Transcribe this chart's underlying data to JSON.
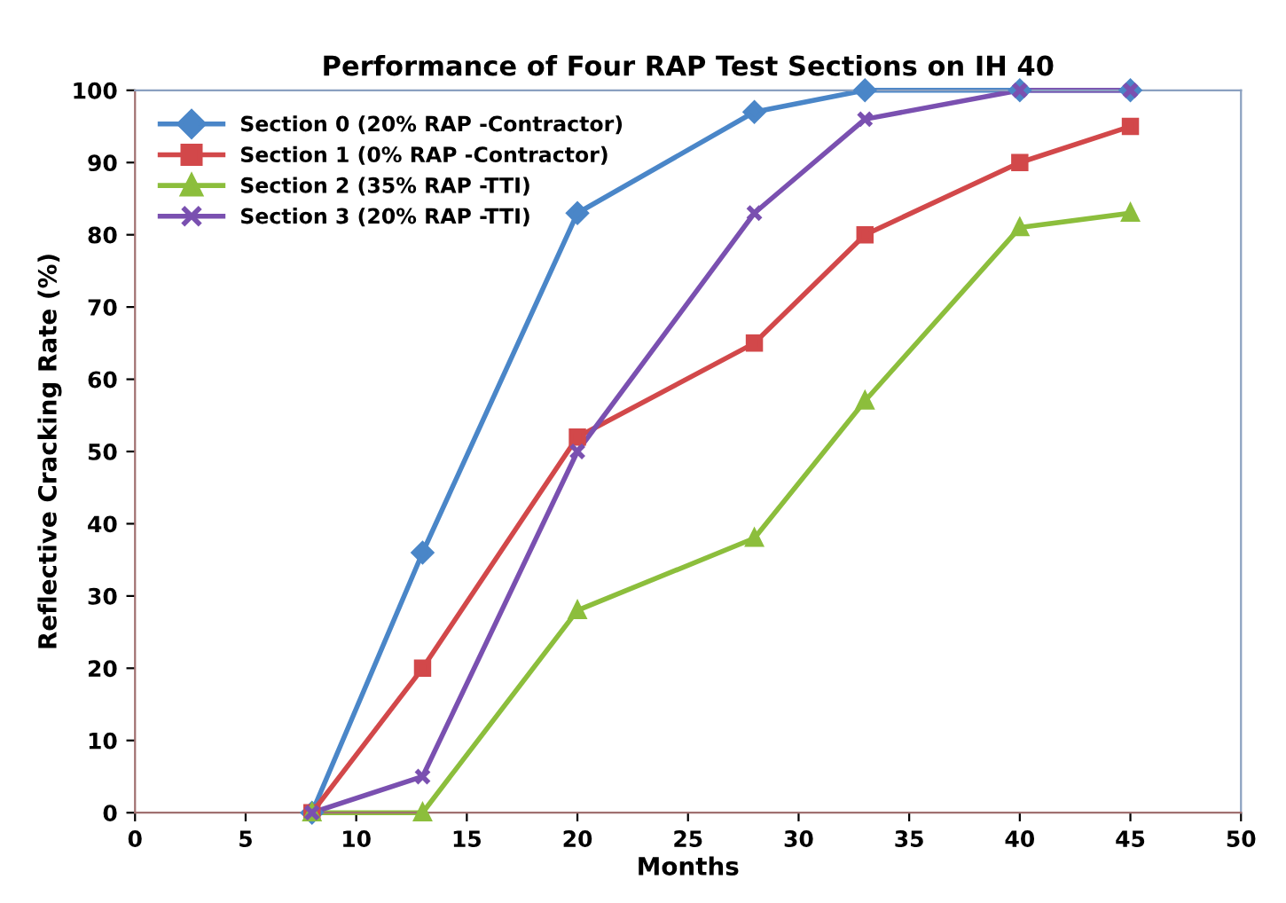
{
  "chart_data": {
    "type": "line",
    "title": "Performance of Four RAP Test Sections on IH 40",
    "xlabel": "Months",
    "ylabel": "Reflective Cracking Rate (%)",
    "xlim": [
      0,
      50
    ],
    "xticks": [
      0,
      5,
      10,
      15,
      20,
      25,
      30,
      35,
      40,
      45,
      50
    ],
    "ylim": [
      0,
      100
    ],
    "yticks": [
      0,
      10,
      20,
      30,
      40,
      50,
      60,
      70,
      80,
      90,
      100
    ],
    "grid": false,
    "legend": "top left",
    "line_style": "solid",
    "series": [
      {
        "name": "Section 0 (20% RAP -Contractor)",
        "color": "#4a86c8",
        "marker": "diamond",
        "x": [
          8,
          13,
          20,
          28,
          33,
          40,
          45
        ],
        "values": [
          0,
          36,
          83,
          97,
          100,
          100,
          100
        ]
      },
      {
        "name": "Section 1 (0% RAP -Contractor)",
        "color": "#d2484a",
        "marker": "square",
        "x": [
          8,
          13,
          20,
          28,
          33,
          40,
          45
        ],
        "values": [
          0,
          20,
          52,
          65,
          80,
          90,
          95
        ]
      },
      {
        "name": "Section 2 (35% RAP -TTI)",
        "color": "#8cbe3c",
        "marker": "triangle",
        "x": [
          8,
          13,
          20,
          28,
          33,
          40,
          45
        ],
        "values": [
          0,
          0,
          28,
          38,
          57,
          81,
          83
        ]
      },
      {
        "name": "Section 3 (20% RAP -TTI)",
        "color": "#7a50b0",
        "marker": "cross",
        "x": [
          8,
          13,
          20,
          28,
          33,
          40,
          45
        ],
        "values": [
          0,
          5,
          50,
          83,
          96,
          100,
          100
        ]
      }
    ]
  }
}
